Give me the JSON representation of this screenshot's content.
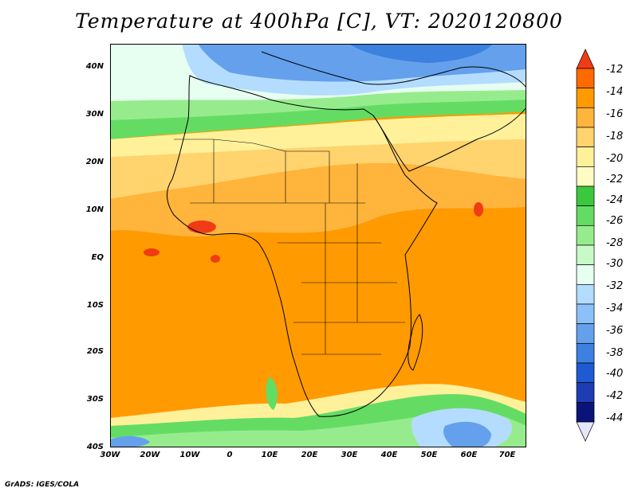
{
  "title": "Temperature at 400hPa [C], VT: 2020120800",
  "credit": "GrADS: IGES/COLA",
  "map": {
    "lat_labels": [
      "40N",
      "30N",
      "20N",
      "10N",
      "EQ",
      "10S",
      "20S",
      "30S",
      "40S"
    ],
    "lon_labels": [
      "30W",
      "20W",
      "10W",
      "0",
      "10E",
      "20E",
      "30E",
      "40E",
      "50E",
      "60E",
      "70E"
    ]
  },
  "colorbar": {
    "levels": [
      "-12",
      "-14",
      "-16",
      "-18",
      "-20",
      "-22",
      "-24",
      "-26",
      "-28",
      "-30",
      "-32",
      "-34",
      "-36",
      "-38",
      "-40",
      "-42",
      "-44"
    ],
    "colors": [
      "#f03c14",
      "#ff6a00",
      "#ff9a00",
      "#ffb43c",
      "#ffd36e",
      "#fff19a",
      "#fffbc4",
      "#3cc83c",
      "#64dc64",
      "#96ec8c",
      "#c8fac8",
      "#e6fff0",
      "#b4dcff",
      "#8cc0f8",
      "#64a0ec",
      "#3c80e0",
      "#1e5ad2",
      "#1e3cb4",
      "#0a1478",
      "#e6e6fa"
    ]
  }
}
